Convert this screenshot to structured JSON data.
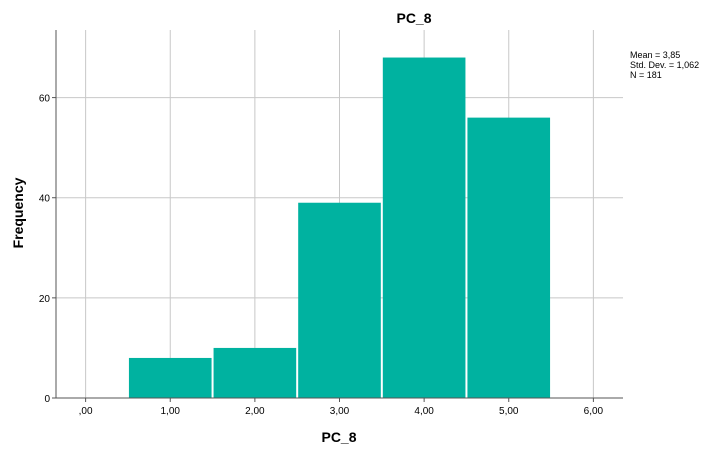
{
  "chart_data": {
    "type": "bar",
    "title": "PC_8",
    "xlabel": "PC_8",
    "ylabel": "Frequency",
    "x_ticks": [
      ",00",
      "1,00",
      "2,00",
      "3,00",
      "4,00",
      "5,00",
      "6,00"
    ],
    "x_tick_values": [
      0,
      1,
      2,
      3,
      4,
      5,
      6
    ],
    "y_ticks": [
      "0",
      "20",
      "40",
      "60"
    ],
    "y_tick_values": [
      0,
      20,
      40,
      60
    ],
    "xlim": [
      -0.35,
      6.35
    ],
    "ylim": [
      0,
      73.5
    ],
    "categories": [
      "1,00",
      "2,00",
      "3,00",
      "4,00",
      "5,00"
    ],
    "bin_centers": [
      1,
      2,
      3,
      4,
      5
    ],
    "bin_width": 1,
    "values": [
      8,
      10,
      39,
      68,
      56
    ],
    "bar_color": "#00b2a0",
    "grid": true,
    "stats": {
      "mean": "Mean = 3,85",
      "std": "Std. Dev. = 1,062",
      "n": "N = 181"
    }
  }
}
